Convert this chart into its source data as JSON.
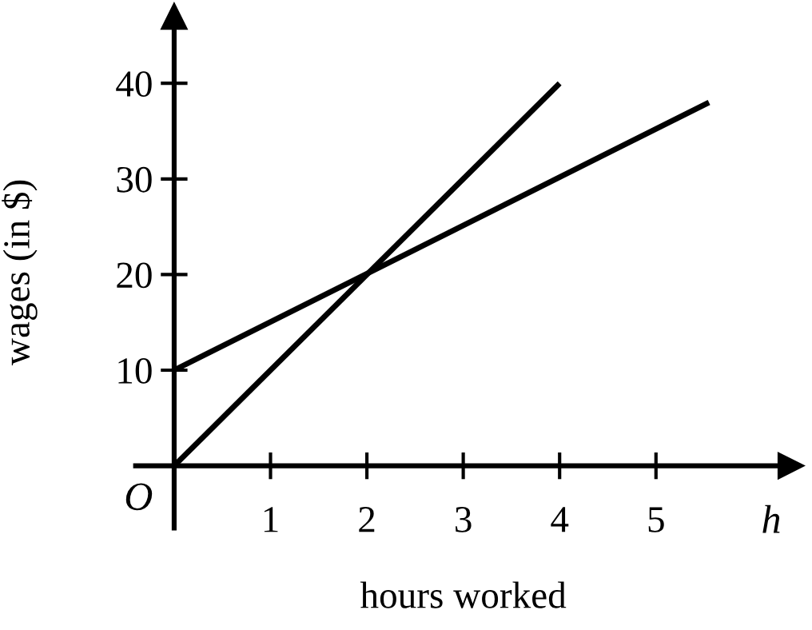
{
  "chart_data": {
    "type": "line",
    "xlabel": "hours worked",
    "ylabel": "wages (in $)",
    "xlim": [
      -0.4,
      6.4
    ],
    "ylim": [
      -6.5,
      47
    ],
    "xticks": [
      1,
      2,
      3,
      4,
      5
    ],
    "yticks": [
      10,
      20,
      30,
      40
    ],
    "series": [
      {
        "color": "#000000",
        "x": [
          0,
          4
        ],
        "values": [
          0,
          40
        ]
      },
      {
        "color": "#000000",
        "x": [
          0,
          5.55
        ],
        "values": [
          10,
          38
        ]
      }
    ],
    "annotations": [
      "O",
      "h"
    ],
    "grid": false,
    "marker": "none",
    "line_style": "solid"
  }
}
